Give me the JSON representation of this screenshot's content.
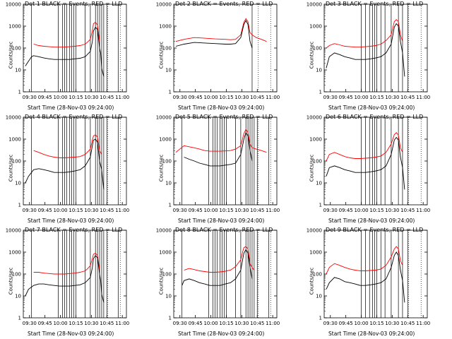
{
  "chart_data": {
    "type": "line",
    "layout": "3x3 grid of log-scale time series panels",
    "legend_text": "BLACK = Events, RED = LLD",
    "xlabel": "Start Time (28-Nov-03 09:24:00)",
    "ylabel": "Counts/sec",
    "yscale": "log",
    "ylim": [
      1,
      10000
    ],
    "ytick_labels": [
      "1",
      "10",
      "100",
      "1000",
      "10000"
    ],
    "ytick_values": [
      1,
      10,
      100,
      1000,
      10000
    ],
    "x_unit": "minutes after 09:24:00",
    "xlim": [
      0,
      100
    ],
    "xtick_labels": [
      "09:30",
      "09:45",
      "10:00",
      "10:15",
      "10:30",
      "10:45",
      "11:00"
    ],
    "xtick_values": [
      6,
      21,
      36,
      51,
      66,
      81,
      96
    ],
    "series_colors": {
      "events": "#000000",
      "lld": "#ff0000"
    },
    "panels": [
      {
        "title": "Det 1  BLACK = Events, RED = LLD",
        "x": [
          2,
          5,
          8,
          10,
          15,
          20,
          25,
          30,
          35,
          40,
          45,
          50,
          55,
          60,
          62,
          65,
          67,
          68,
          70,
          72,
          74,
          75,
          76,
          78
        ],
        "events": [
          15,
          25,
          40,
          45,
          40,
          35,
          32,
          30,
          30,
          30,
          30,
          32,
          34,
          40,
          50,
          70,
          200,
          600,
          900,
          700,
          100,
          60,
          12,
          5
        ],
        "lld": [
          null,
          null,
          null,
          150,
          130,
          120,
          115,
          110,
          110,
          110,
          115,
          120,
          130,
          150,
          180,
          250,
          600,
          1300,
          1500,
          1100,
          200,
          null,
          null,
          null
        ],
        "vlines": [
          8,
          34,
          38,
          40,
          42,
          45,
          47,
          49,
          51,
          60,
          65,
          70,
          72,
          74,
          76,
          78,
          81,
          92
        ]
      },
      {
        "title": "Det 2  BLACK = Events, RED = LLD",
        "x": [
          2,
          10,
          20,
          30,
          40,
          50,
          55,
          60,
          65,
          68,
          70,
          72,
          74,
          76,
          80,
          85,
          90
        ],
        "events": [
          120,
          150,
          180,
          170,
          160,
          150,
          150,
          160,
          300,
          1200,
          1800,
          1200,
          200,
          100,
          null,
          null,
          null
        ],
        "lld": [
          200,
          250,
          300,
          280,
          260,
          250,
          240,
          250,
          400,
          1500,
          2200,
          1600,
          500,
          400,
          300,
          250,
          200
        ],
        "vlines": [
          76
        ]
      },
      {
        "title": "Det 3  BLACK = Events, RED = LLD",
        "x": [
          2,
          5,
          10,
          15,
          20,
          25,
          30,
          35,
          40,
          45,
          50,
          55,
          60,
          65,
          68,
          70,
          72,
          74,
          76,
          78
        ],
        "events": [
          12,
          40,
          60,
          50,
          40,
          35,
          30,
          30,
          30,
          32,
          35,
          40,
          60,
          150,
          900,
          1300,
          1000,
          200,
          60,
          5
        ],
        "lld": [
          100,
          130,
          160,
          140,
          120,
          115,
          110,
          110,
          115,
          120,
          130,
          150,
          220,
          400,
          1600,
          2000,
          1600,
          400,
          200,
          null
        ],
        "vlines": [
          36,
          40,
          44,
          47,
          49,
          51,
          55,
          59,
          65,
          72,
          76,
          81
        ]
      },
      {
        "title": "Det 4  BLACK = Events, RED = LLD",
        "x": [
          2,
          5,
          10,
          15,
          20,
          25,
          30,
          35,
          40,
          45,
          50,
          55,
          60,
          65,
          67,
          68,
          70,
          72,
          74,
          76,
          78
        ],
        "events": [
          10,
          20,
          40,
          45,
          40,
          35,
          30,
          30,
          30,
          32,
          35,
          40,
          60,
          150,
          500,
          900,
          1000,
          700,
          100,
          40,
          5
        ],
        "lld": [
          null,
          null,
          300,
          250,
          200,
          170,
          150,
          140,
          140,
          145,
          150,
          160,
          200,
          350,
          900,
          1400,
          1600,
          1200,
          300,
          200,
          null
        ],
        "vlines": [
          8,
          34,
          38,
          40,
          42,
          45,
          47,
          49,
          51,
          60,
          65,
          70,
          72,
          74,
          76,
          78,
          81,
          92
        ]
      },
      {
        "title": "Det 5  BLACK = Events, RED = LLD",
        "x": [
          2,
          10,
          15,
          20,
          25,
          30,
          35,
          40,
          45,
          50,
          55,
          60,
          65,
          68,
          70,
          72,
          74,
          76,
          80,
          85,
          90
        ],
        "events": [
          null,
          150,
          120,
          100,
          80,
          70,
          60,
          60,
          60,
          65,
          70,
          80,
          200,
          1000,
          2000,
          1400,
          300,
          100,
          null,
          null,
          null
        ],
        "lld": [
          250,
          500,
          450,
          400,
          350,
          300,
          280,
          280,
          280,
          290,
          300,
          350,
          500,
          1800,
          2800,
          2000,
          600,
          400,
          350,
          300,
          250
        ],
        "vlines": [
          8,
          34,
          38,
          40,
          42,
          45,
          47,
          49,
          51,
          60,
          65,
          70,
          72,
          74,
          76,
          78,
          81,
          92
        ]
      },
      {
        "title": "Det 6  BLACK = Events, RED = LLD",
        "x": [
          2,
          5,
          10,
          15,
          20,
          25,
          30,
          35,
          40,
          45,
          50,
          55,
          60,
          65,
          68,
          70,
          72,
          74,
          76,
          78
        ],
        "events": [
          20,
          50,
          60,
          50,
          40,
          35,
          30,
          30,
          30,
          32,
          35,
          40,
          60,
          200,
          900,
          1200,
          900,
          150,
          50,
          5
        ],
        "lld": [
          100,
          200,
          250,
          200,
          160,
          140,
          130,
          130,
          135,
          140,
          150,
          170,
          250,
          600,
          1600,
          2000,
          1500,
          400,
          250,
          null
        ],
        "vlines": [
          36,
          40,
          44,
          47,
          49,
          51,
          55,
          59,
          65,
          72,
          76,
          81
        ]
      },
      {
        "title": "Det 7  BLACK = Events, RED = LLD",
        "x": [
          2,
          5,
          10,
          15,
          20,
          25,
          30,
          35,
          40,
          45,
          50,
          55,
          60,
          62,
          65,
          67,
          68,
          70,
          72,
          74,
          75,
          76,
          78
        ],
        "events": [
          10,
          20,
          30,
          35,
          35,
          32,
          30,
          28,
          28,
          28,
          30,
          32,
          40,
          50,
          70,
          200,
          500,
          700,
          550,
          100,
          50,
          12,
          5
        ],
        "lld": [
          null,
          null,
          120,
          120,
          110,
          105,
          100,
          100,
          100,
          105,
          110,
          120,
          140,
          170,
          240,
          500,
          800,
          900,
          700,
          150,
          null,
          null,
          null
        ],
        "vlines": [
          8,
          34,
          38,
          40,
          42,
          45,
          47,
          49,
          51,
          60,
          65,
          70,
          72,
          74,
          76,
          78,
          81,
          92
        ]
      },
      {
        "title": "Det 8  BLACK = Events, RED = LLD",
        "x": [
          2,
          5,
          8,
          10,
          15,
          20,
          25,
          30,
          35,
          40,
          45,
          50,
          55,
          60,
          65,
          67,
          68,
          70,
          72,
          74,
          76,
          78,
          80
        ],
        "events": [
          null,
          null,
          30,
          50,
          60,
          50,
          40,
          35,
          30,
          30,
          30,
          35,
          40,
          60,
          150,
          500,
          900,
          1300,
          900,
          200,
          60,
          null,
          null
        ],
        "lld": [
          null,
          null,
          null,
          150,
          180,
          160,
          140,
          130,
          120,
          120,
          125,
          135,
          150,
          220,
          450,
          1100,
          1600,
          1800,
          1400,
          300,
          200,
          150,
          null
        ],
        "vlines": [
          8,
          34,
          38,
          40,
          42,
          45,
          47,
          49,
          51,
          60,
          65,
          70,
          72,
          74,
          76,
          78,
          81,
          92
        ]
      },
      {
        "title": "Det 9  BLACK = Events, RED = LLD",
        "x": [
          2,
          5,
          10,
          15,
          20,
          25,
          30,
          35,
          40,
          45,
          50,
          55,
          60,
          65,
          68,
          70,
          72,
          74,
          76,
          78
        ],
        "events": [
          20,
          40,
          70,
          60,
          45,
          40,
          35,
          30,
          30,
          32,
          35,
          40,
          60,
          200,
          700,
          1000,
          700,
          150,
          50,
          5
        ],
        "lld": [
          100,
          200,
          300,
          250,
          200,
          170,
          150,
          140,
          140,
          145,
          150,
          170,
          250,
          600,
          1400,
          1800,
          1400,
          400,
          250,
          null
        ],
        "vlines": [
          36,
          40,
          44,
          47,
          49,
          51,
          55,
          59,
          65,
          72,
          76,
          81
        ]
      }
    ]
  }
}
